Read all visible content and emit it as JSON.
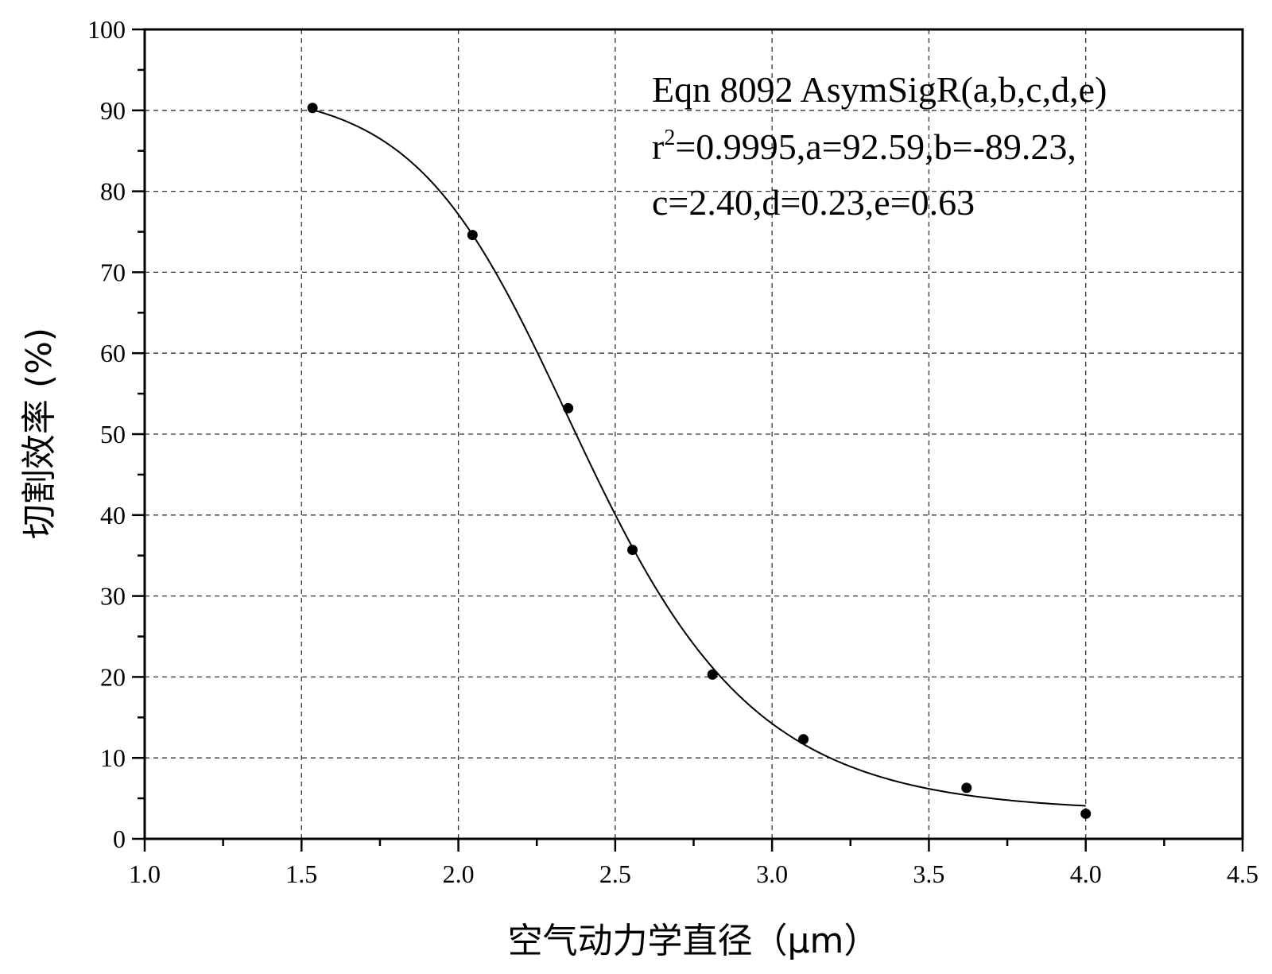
{
  "chart_data": {
    "type": "scatter",
    "xlabel": "空气动力学直径（μm）",
    "ylabel": "切割效率 (%)",
    "xlim": [
      1.0,
      4.5
    ],
    "ylim": [
      0,
      100
    ],
    "x_ticks": [
      "1.0",
      "1.5",
      "2.0",
      "2.5",
      "3.0",
      "3.5",
      "4.0",
      "4.5"
    ],
    "y_ticks": [
      "0",
      "10",
      "20",
      "30",
      "40",
      "50",
      "60",
      "70",
      "80",
      "90",
      "100"
    ],
    "grid": true,
    "series": [
      {
        "type": "scatter",
        "x": [
          1.535,
          2.045,
          2.35,
          2.555,
          2.81,
          3.1,
          3.62,
          4.0
        ],
        "y": [
          90.3,
          74.6,
          53.2,
          35.7,
          20.3,
          12.3,
          6.3,
          3.1
        ]
      },
      {
        "type": "line",
        "model": "AsymSigR",
        "params": {
          "a": 92.59,
          "b": -89.23,
          "c": 2.4,
          "d": 0.23,
          "e": 0.63
        },
        "x_range": [
          1.535,
          4.0
        ]
      }
    ],
    "annotation": {
      "line1": "Eqn 8092  AsymSigR(a,b,c,d,e)",
      "line2_prefix": "r",
      "line2_sup": "2",
      "line2_rest": "=0.9995,a=92.59,b=-89.23,",
      "line3": "c=2.40,d=0.23,e=0.63"
    }
  }
}
